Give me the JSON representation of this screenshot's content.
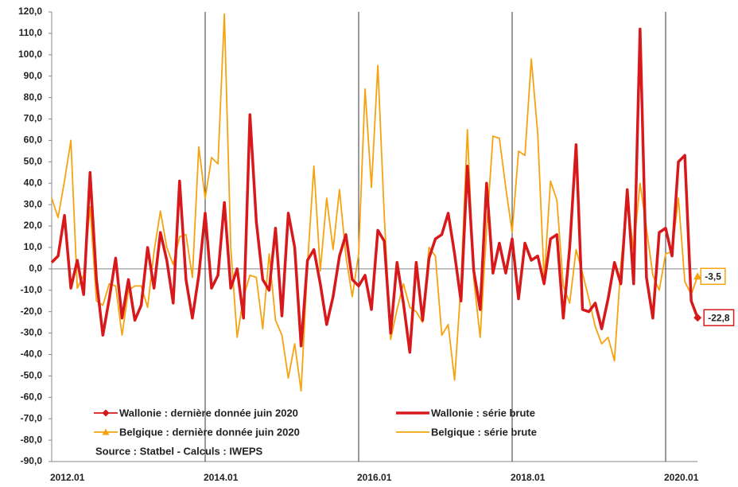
{
  "chart_data": {
    "type": "line",
    "source": "Source : Statbel - Calculs : IWEPS",
    "categories": [
      "2012.01",
      null,
      null,
      null,
      null,
      null,
      null,
      null,
      null,
      null,
      null,
      null,
      null,
      null,
      null,
      null,
      null,
      null,
      null,
      null,
      null,
      null,
      null,
      null,
      "2014.01",
      null,
      null,
      null,
      null,
      null,
      null,
      null,
      null,
      null,
      null,
      null,
      null,
      null,
      null,
      null,
      null,
      null,
      null,
      null,
      null,
      null,
      null,
      null,
      "2016.01",
      null,
      null,
      null,
      null,
      null,
      null,
      null,
      null,
      null,
      null,
      null,
      null,
      null,
      null,
      null,
      null,
      null,
      null,
      null,
      null,
      null,
      null,
      null,
      "2018.01",
      null,
      null,
      null,
      null,
      null,
      null,
      null,
      null,
      null,
      null,
      null,
      null,
      null,
      null,
      null,
      null,
      null,
      null,
      null,
      null,
      null,
      null,
      null,
      "2020.01",
      null,
      null,
      null,
      null,
      null
    ],
    "ylim": [
      -90,
      120
    ],
    "yticks": [
      {
        "value": -90,
        "label": "-90,0"
      },
      {
        "value": -80,
        "label": "-80,0"
      },
      {
        "value": -70,
        "label": "-70,0"
      },
      {
        "value": -60,
        "label": "-60,0"
      },
      {
        "value": -50,
        "label": "-50,0"
      },
      {
        "value": -40,
        "label": "-40,0"
      },
      {
        "value": -30,
        "label": "-30,0"
      },
      {
        "value": -20,
        "label": "-20,0"
      },
      {
        "value": -10,
        "label": "-10,0"
      },
      {
        "value": 0,
        "label": "0,0"
      },
      {
        "value": 10,
        "label": "10,0"
      },
      {
        "value": 20,
        "label": "20,0"
      },
      {
        "value": 30,
        "label": "30,0"
      },
      {
        "value": 40,
        "label": "40,0"
      },
      {
        "value": 50,
        "label": "50,0"
      },
      {
        "value": 60,
        "label": "60,0"
      },
      {
        "value": 70,
        "label": "70,0"
      },
      {
        "value": 80,
        "label": "80,0"
      },
      {
        "value": 90,
        "label": "90,0"
      },
      {
        "value": 100,
        "label": "100,0"
      },
      {
        "value": 110,
        "label": "110,0"
      },
      {
        "value": 120,
        "label": "120,0"
      }
    ],
    "series": [
      {
        "name": "Wallonie : dernière donnée juin 2020",
        "color": "#d7191c",
        "marker": "diamond",
        "values": [
          null,
          null,
          null,
          null,
          null,
          null,
          null,
          null,
          null,
          null,
          null,
          null,
          null,
          null,
          null,
          null,
          null,
          null,
          null,
          null,
          null,
          null,
          null,
          null,
          null,
          null,
          null,
          null,
          null,
          null,
          null,
          null,
          null,
          null,
          null,
          null,
          null,
          null,
          null,
          null,
          null,
          null,
          null,
          null,
          null,
          null,
          null,
          null,
          null,
          null,
          null,
          null,
          null,
          null,
          null,
          null,
          null,
          null,
          null,
          null,
          null,
          null,
          null,
          null,
          null,
          null,
          null,
          null,
          null,
          null,
          null,
          null,
          null,
          null,
          null,
          null,
          null,
          null,
          null,
          null,
          null,
          null,
          null,
          null,
          null,
          null,
          null,
          null,
          null,
          null,
          null,
          null,
          null,
          null,
          null,
          null,
          null,
          null,
          null,
          null,
          null,
          -22.8
        ],
        "value_labels": [
          null,
          null,
          null,
          null,
          null,
          null,
          null,
          null,
          null,
          null,
          null,
          null,
          null,
          null,
          null,
          null,
          null,
          null,
          null,
          null,
          null,
          null,
          null,
          null,
          null,
          null,
          null,
          null,
          null,
          null,
          null,
          null,
          null,
          null,
          null,
          null,
          null,
          null,
          null,
          null,
          null,
          null,
          null,
          null,
          null,
          null,
          null,
          null,
          null,
          null,
          null,
          null,
          null,
          null,
          null,
          null,
          null,
          null,
          null,
          null,
          null,
          null,
          null,
          null,
          null,
          null,
          null,
          null,
          null,
          null,
          null,
          null,
          null,
          null,
          null,
          null,
          null,
          null,
          null,
          null,
          null,
          null,
          null,
          null,
          null,
          null,
          null,
          null,
          null,
          null,
          null,
          null,
          null,
          null,
          null,
          null,
          null,
          null,
          null,
          null,
          null,
          "-22,8"
        ]
      },
      {
        "name": "Wallonie : série brute",
        "color": "#d7191c",
        "line_width": 3.5,
        "values": [
          3,
          6,
          25,
          -9,
          4,
          -12,
          45,
          -5,
          -31,
          -14,
          5,
          -23,
          -5,
          -24,
          -17,
          10,
          -9,
          17,
          4,
          -16,
          41,
          -5,
          -23,
          -3,
          26,
          -9,
          -3,
          31,
          -9,
          0,
          -23,
          72,
          22,
          -5,
          -10,
          19,
          -22,
          26,
          10,
          -36,
          4,
          9,
          -7,
          -26,
          -13,
          6,
          16,
          -5,
          -8,
          -3,
          -19,
          18,
          13,
          -30,
          3,
          -16,
          -39,
          3,
          -24,
          5,
          14,
          16,
          26,
          7,
          -15,
          48,
          -1,
          -19,
          40,
          -2,
          12,
          -2,
          14,
          -14,
          12,
          4,
          6,
          -7,
          14,
          16,
          -23,
          10,
          58,
          -19,
          -20,
          -16,
          -28,
          -14,
          3,
          -7,
          37,
          -7,
          112,
          -4,
          -23,
          17,
          19,
          6,
          50,
          53,
          -15,
          -22.8
        ]
      },
      {
        "name": "Belgique : dernière donnée juin 2020",
        "color": "#f5a30f",
        "marker": "triangle",
        "values": [
          null,
          null,
          null,
          null,
          null,
          null,
          null,
          null,
          null,
          null,
          null,
          null,
          null,
          null,
          null,
          null,
          null,
          null,
          null,
          null,
          null,
          null,
          null,
          null,
          null,
          null,
          null,
          null,
          null,
          null,
          null,
          null,
          null,
          null,
          null,
          null,
          null,
          null,
          null,
          null,
          null,
          null,
          null,
          null,
          null,
          null,
          null,
          null,
          null,
          null,
          null,
          null,
          null,
          null,
          null,
          null,
          null,
          null,
          null,
          null,
          null,
          null,
          null,
          null,
          null,
          null,
          null,
          null,
          null,
          null,
          null,
          null,
          null,
          null,
          null,
          null,
          null,
          null,
          null,
          null,
          null,
          null,
          null,
          null,
          null,
          null,
          null,
          null,
          null,
          null,
          null,
          null,
          null,
          null,
          null,
          null,
          null,
          null,
          null,
          null,
          null,
          -3.5
        ],
        "value_labels": [
          null,
          null,
          null,
          null,
          null,
          null,
          null,
          null,
          null,
          null,
          null,
          null,
          null,
          null,
          null,
          null,
          null,
          null,
          null,
          null,
          null,
          null,
          null,
          null,
          null,
          null,
          null,
          null,
          null,
          null,
          null,
          null,
          null,
          null,
          null,
          null,
          null,
          null,
          null,
          null,
          null,
          null,
          null,
          null,
          null,
          null,
          null,
          null,
          null,
          null,
          null,
          null,
          null,
          null,
          null,
          null,
          null,
          null,
          null,
          null,
          null,
          null,
          null,
          null,
          null,
          null,
          null,
          null,
          null,
          null,
          null,
          null,
          null,
          null,
          null,
          null,
          null,
          null,
          null,
          null,
          null,
          null,
          null,
          null,
          null,
          null,
          null,
          null,
          null,
          null,
          null,
          null,
          null,
          null,
          null,
          null,
          null,
          null,
          null,
          null,
          null,
          "-3,5"
        ]
      },
      {
        "name": "Belgique : série brute",
        "color": "#f5a30f",
        "line_width": 1.8,
        "values": [
          33,
          24,
          41,
          60,
          -9,
          -3,
          29,
          -15,
          -17,
          -7,
          -8,
          -31,
          -10,
          -8,
          -8,
          -18,
          8,
          27,
          10,
          2,
          15,
          16,
          -4,
          57,
          33,
          52,
          49,
          119,
          10,
          -32,
          -13,
          -3,
          -4,
          -28,
          7,
          -24,
          -31,
          -51,
          -35,
          -57,
          2,
          48,
          -1,
          33,
          9,
          37,
          6,
          -13,
          7,
          84,
          38,
          95,
          25,
          -33,
          -19,
          -7,
          -18,
          -20,
          -25,
          10,
          6,
          -31,
          -26,
          -52,
          -7,
          65,
          -5,
          -32,
          18,
          62,
          61,
          38,
          17,
          55,
          53,
          98,
          63,
          -5,
          41,
          32,
          -8,
          -16,
          9,
          -2,
          -14,
          -27,
          -35,
          -32,
          -43,
          2,
          32,
          9,
          40,
          19,
          -3,
          -10,
          7,
          8,
          33,
          -6,
          -12,
          -3.5
        ]
      }
    ]
  }
}
